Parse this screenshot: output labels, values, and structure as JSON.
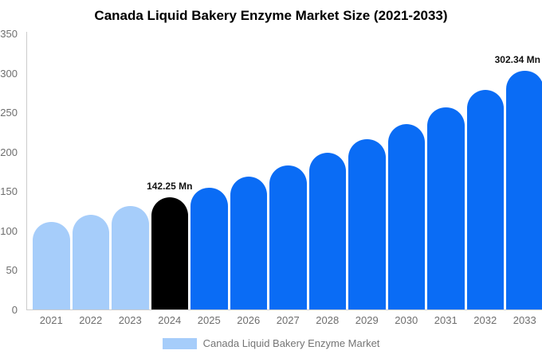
{
  "chart_data": {
    "type": "bar",
    "title": "Canada Liquid Bakery Enzyme Market Size (2021-2033)",
    "categories": [
      "2021",
      "2022",
      "2023",
      "2024",
      "2025",
      "2026",
      "2027",
      "2028",
      "2029",
      "2030",
      "2031",
      "2032",
      "2033"
    ],
    "values": [
      110.6,
      120.3,
      130.8,
      142.25,
      154.7,
      168.2,
      182.9,
      198.9,
      216.3,
      235.2,
      255.8,
      278.1,
      302.34
    ],
    "unit": "Mn",
    "xlabel": "",
    "ylabel": "",
    "ylim": [
      0,
      350
    ],
    "yticks": [
      0,
      50,
      100,
      150,
      200,
      250,
      300,
      350
    ],
    "grid": false,
    "legend": {
      "label": "Canada Liquid Bakery Enzyme Market",
      "position": "bottom"
    },
    "annotations": [
      {
        "year": "2024",
        "label": "142.25 Mn"
      },
      {
        "year": "2033",
        "label": "302.34 Mn"
      }
    ],
    "bar_roles": [
      "historical",
      "historical",
      "historical",
      "highlight",
      "forecast",
      "forecast",
      "forecast",
      "forecast",
      "forecast",
      "forecast",
      "forecast",
      "forecast",
      "forecast"
    ],
    "colors": {
      "historical": "#A6CDFA",
      "highlight": "#000000",
      "forecast": "#0A6CF5",
      "axis": "#CCCCCC",
      "tick_label": "#6E6E6E",
      "legend_label": "#757575",
      "title": "#000000",
      "annotation": "#111111"
    }
  }
}
